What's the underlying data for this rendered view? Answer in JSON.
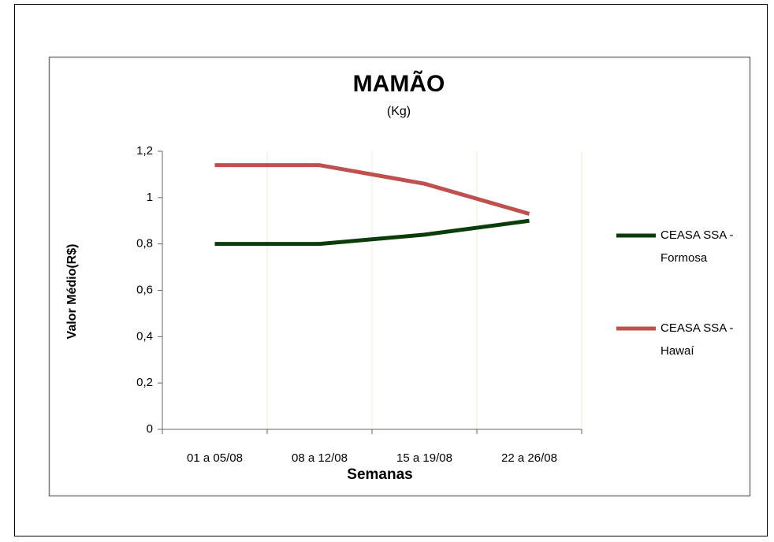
{
  "chart_data": {
    "type": "line",
    "title": "MAMÃO",
    "subtitle": "(Kg)",
    "x_label": "Semanas",
    "y_label": "Valor Médio(R$)",
    "categories": [
      "01 a 05/08",
      "08 a 12/08",
      "15 a 19/08",
      "22 a 26/08"
    ],
    "series": [
      {
        "name": "CEASA SSA - Formosa",
        "color": "#0b3d0b",
        "values": [
          0.8,
          0.8,
          0.84,
          0.9
        ]
      },
      {
        "name": "CEASA SSA - Hawaí",
        "color": "#c0504d",
        "values": [
          1.14,
          1.14,
          1.06,
          0.93
        ]
      }
    ],
    "ylim": [
      0,
      1.2
    ],
    "yticks": [
      0,
      {
        "value": 0.2,
        "label": "0,2"
      },
      {
        "value": 0.4,
        "label": "0,4"
      },
      {
        "value": 0.6,
        "label": "0,6"
      },
      {
        "value": 0.8,
        "label": "0,8"
      },
      1,
      {
        "value": 1.2,
        "label": "1,2"
      }
    ],
    "legend": "right",
    "grid": "vertical"
  }
}
